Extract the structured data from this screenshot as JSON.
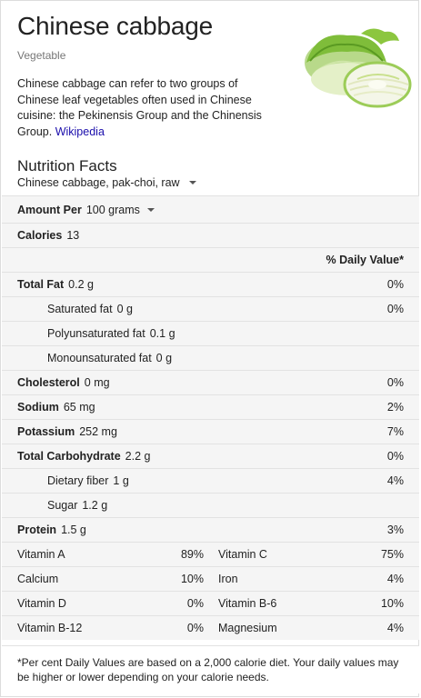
{
  "header": {
    "title": "Chinese cabbage",
    "subtitle": "Vegetable",
    "description": "Chinese cabbage can refer to two groups of Chinese leaf vegetables often used in Chinese cuisine: the Pekinensis Group and the Chinensis Group.",
    "source_link": "Wikipedia"
  },
  "nutrition": {
    "title": "Nutrition Facts",
    "food_selector": "Chinese cabbage, pak-choi, raw",
    "amount_label": "Amount Per",
    "amount_value": "100 grams",
    "calories_label": "Calories",
    "calories_value": "13",
    "dv_header": "% Daily Value*",
    "rows": [
      {
        "label": "Total Fat",
        "value": "0.2 g",
        "dv": "0%"
      },
      {
        "label": "Saturated fat",
        "value": "0 g",
        "dv": "0%"
      },
      {
        "label": "Polyunsaturated fat",
        "value": "0.1 g",
        "dv": ""
      },
      {
        "label": "Monounsaturated fat",
        "value": "0 g",
        "dv": ""
      },
      {
        "label": "Cholesterol",
        "value": "0 mg",
        "dv": "0%"
      },
      {
        "label": "Sodium",
        "value": "65 mg",
        "dv": "2%"
      },
      {
        "label": "Potassium",
        "value": "252 mg",
        "dv": "7%"
      },
      {
        "label": "Total Carbohydrate",
        "value": "2.2 g",
        "dv": "0%"
      },
      {
        "label": "Dietary fiber",
        "value": "1 g",
        "dv": "4%"
      },
      {
        "label": "Sugar",
        "value": "1.2 g",
        "dv": ""
      },
      {
        "label": "Protein",
        "value": "1.5 g",
        "dv": "3%"
      }
    ],
    "vitamins": [
      {
        "left_name": "Vitamin A",
        "left_dv": "89%",
        "right_name": "Vitamin C",
        "right_dv": "75%"
      },
      {
        "left_name": "Calcium",
        "left_dv": "10%",
        "right_name": "Iron",
        "right_dv": "4%"
      },
      {
        "left_name": "Vitamin D",
        "left_dv": "0%",
        "right_name": "Vitamin B-6",
        "right_dv": "10%"
      },
      {
        "left_name": "Vitamin B-12",
        "left_dv": "0%",
        "right_name": "Magnesium",
        "right_dv": "4%"
      }
    ],
    "footnote": "*Per cent Daily Values are based on a 2,000 calorie diet. Your daily values may be higher or lower depending on your calorie needs."
  },
  "colors": {
    "link": "#1a0dab",
    "table_bg": "#f5f5f5",
    "divider": "#e2e2e2"
  }
}
